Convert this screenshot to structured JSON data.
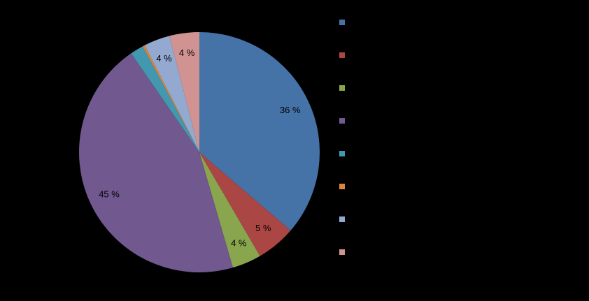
{
  "chart_data": {
    "type": "pie",
    "categories": [
      null,
      null,
      null,
      null,
      null,
      null,
      null,
      null
    ],
    "values": [
      36.3,
      5.3,
      3.9,
      44.9,
      1.8,
      0.3,
      3.5,
      4.0
    ],
    "value_labels": [
      "36 %",
      "5 %",
      "4 %",
      "45 %",
      null,
      null,
      "4 %",
      "4 %"
    ],
    "colors": [
      "#4572a7",
      "#aa4643",
      "#89a54e",
      "#71588f",
      "#4198af",
      "#db843d",
      "#93a9cf",
      "#d19392"
    ],
    "legend": "right"
  }
}
